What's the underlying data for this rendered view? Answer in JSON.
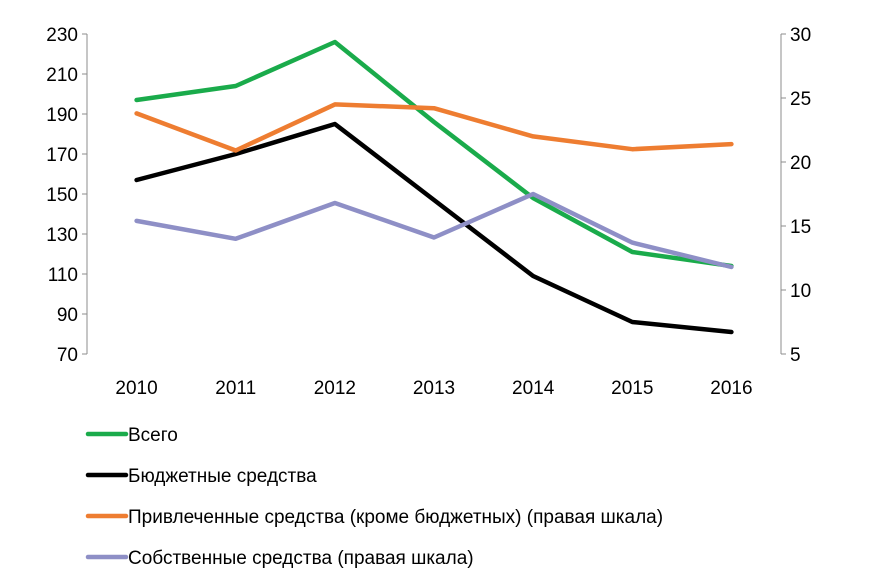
{
  "chart_data": {
    "type": "line",
    "categories": [
      "2010",
      "2011",
      "2012",
      "2013",
      "2014",
      "2015",
      "2016"
    ],
    "left_axis": {
      "min": 70,
      "max": 230,
      "step": 20,
      "ticks": [
        "230",
        "210",
        "190",
        "170",
        "150",
        "130",
        "110",
        "90",
        "70"
      ]
    },
    "right_axis": {
      "min": 5,
      "max": 30,
      "step": 5,
      "ticks": [
        "30",
        "25",
        "20",
        "15",
        "10",
        "5"
      ]
    },
    "series": [
      {
        "name": "Всего",
        "axis": "left",
        "color": "#1aab4b",
        "values": [
          197,
          204,
          226,
          186,
          148,
          121,
          114
        ]
      },
      {
        "name": "Бюджетные средства",
        "axis": "left",
        "color": "#000000",
        "values": [
          157,
          170,
          185,
          147,
          109,
          86,
          81
        ]
      },
      {
        "name": "Привлеченные средства (кроме бюджетных) (правая шкала)",
        "axis": "right",
        "color": "#ee7d31",
        "values": [
          23.8,
          20.9,
          24.5,
          24.2,
          22.0,
          21.0,
          21.4
        ]
      },
      {
        "name": "Собственные средства (правая шкала)",
        "axis": "right",
        "color": "#8e8fc6",
        "values": [
          15.4,
          14.0,
          16.8,
          14.1,
          17.5,
          13.7,
          11.8
        ]
      }
    ],
    "legend_position": "bottom-left",
    "grid": false
  }
}
